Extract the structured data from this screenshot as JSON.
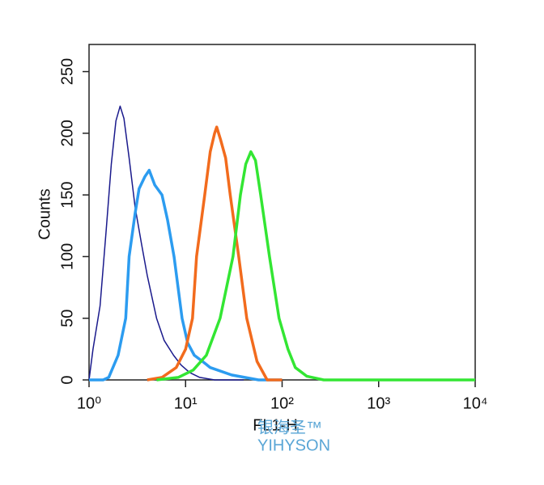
{
  "chart_data": {
    "type": "line",
    "x_label": "FL1-H",
    "y_label": "Counts",
    "xscale": "log",
    "xlim": [
      1,
      10000
    ],
    "ylim": [
      0,
      272
    ],
    "xticks": [
      {
        "value": 1,
        "label": "10⁰"
      },
      {
        "value": 10,
        "label": "10¹"
      },
      {
        "value": 100,
        "label": "10²"
      },
      {
        "value": 1000,
        "label": "10³"
      },
      {
        "value": 10000,
        "label": "10⁴"
      }
    ],
    "yticks": [
      0,
      50,
      100,
      150,
      200,
      250
    ],
    "annotations": [
      "银海圣™",
      "YIHYSON"
    ],
    "series": [
      {
        "color": "#1a1a8c",
        "width": 1.5,
        "x": [
          1,
          1.1,
          1.3,
          1.5,
          1.7,
          1.9,
          2.1,
          2.3,
          2.6,
          3,
          3.5,
          4,
          5,
          6,
          7.5,
          9,
          11,
          14,
          20,
          40
        ],
        "values": [
          0,
          25,
          60,
          120,
          175,
          210,
          222,
          212,
          180,
          140,
          110,
          85,
          50,
          32,
          20,
          12,
          6,
          2,
          0,
          0
        ]
      },
      {
        "color": "#2c9cf0",
        "width": 3.5,
        "x": [
          1,
          1.4,
          1.6,
          2,
          2.4,
          2.6,
          3,
          3.3,
          3.8,
          4.2,
          4.8,
          5.7,
          6.5,
          7.6,
          9.2,
          10.5,
          12.3,
          15,
          18,
          30,
          57,
          100
        ],
        "values": [
          0,
          0,
          2,
          20,
          50,
          100,
          135,
          155,
          165,
          170,
          158,
          150,
          130,
          100,
          50,
          30,
          20,
          15,
          10,
          4,
          0,
          0
        ]
      },
      {
        "color": "#f26b1d",
        "width": 3.5,
        "x": [
          4,
          5.7,
          8,
          10,
          11.8,
          13,
          15.8,
          18,
          20,
          21,
          23,
          26,
          29,
          35.5,
          43,
          55,
          70,
          100
        ],
        "values": [
          0,
          2,
          10,
          25,
          50,
          100,
          150,
          185,
          200,
          205,
          195,
          180,
          150,
          100,
          50,
          15,
          0,
          0
        ]
      },
      {
        "color": "#33e633",
        "width": 3.5,
        "x": [
          5,
          8.4,
          12,
          16.4,
          22.8,
          31,
          37,
          42,
          47.5,
          53,
          60,
          74,
          93,
          115,
          137,
          180,
          270,
          10000
        ],
        "values": [
          0,
          2,
          8,
          20,
          50,
          100,
          150,
          175,
          185,
          178,
          150,
          100,
          50,
          25,
          10,
          3,
          0,
          0
        ]
      }
    ]
  }
}
